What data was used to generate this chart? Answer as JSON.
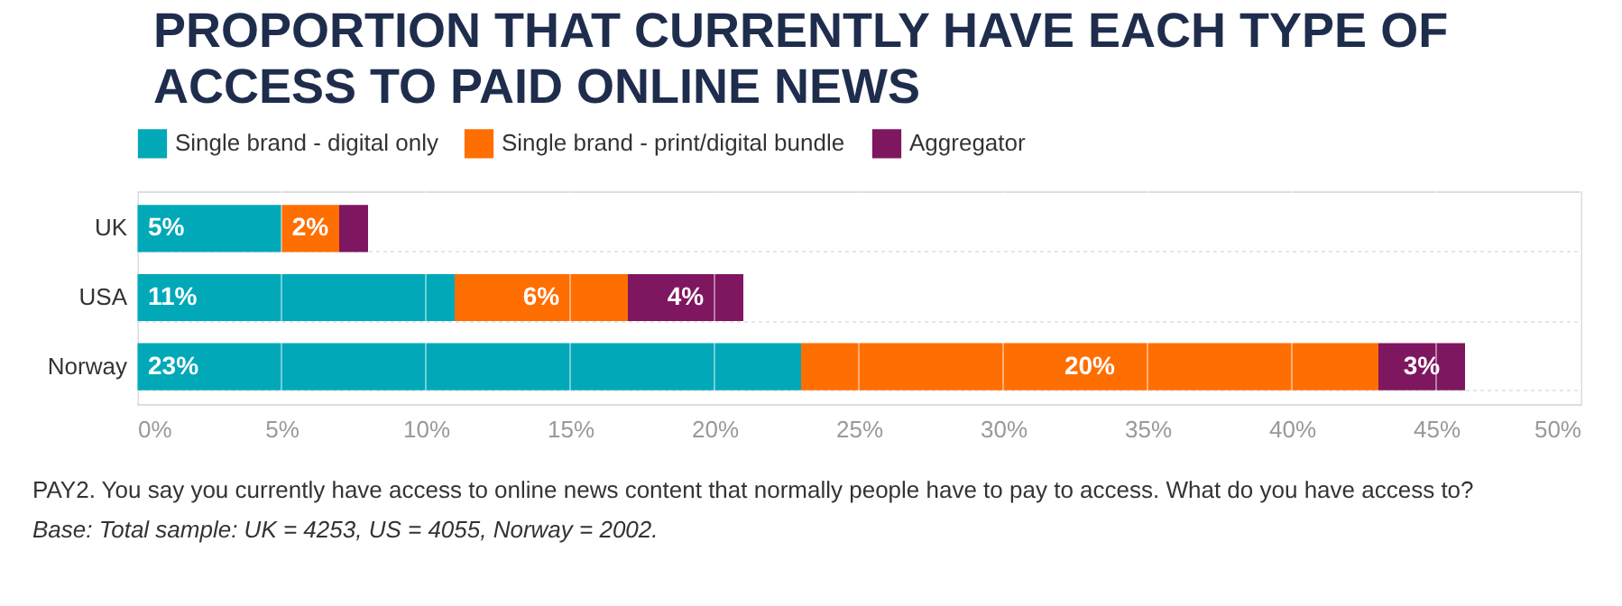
{
  "chart_data": {
    "type": "bar",
    "orientation": "horizontal",
    "stacked": true,
    "title": "PROPORTION THAT CURRENTLY HAVE EACH TYPE OF ACCESS TO PAID ONLINE NEWS",
    "categories": [
      "UK",
      "USA",
      "Norway"
    ],
    "series": [
      {
        "name": "Single brand - digital only",
        "color": "#00a8b8",
        "values": [
          5,
          11,
          23
        ],
        "value_labels": [
          "5%",
          "11%",
          "23%"
        ]
      },
      {
        "name": "Single brand - print/digital bundle",
        "color": "#ff6e00",
        "values": [
          2,
          6,
          20
        ],
        "value_labels": [
          "2%",
          "6%",
          "20%"
        ]
      },
      {
        "name": "Aggregator",
        "color": "#7f1660",
        "values": [
          1,
          4,
          3
        ],
        "value_labels": [
          null,
          "4%",
          "3%"
        ]
      }
    ],
    "xlim": [
      0,
      50
    ],
    "xticks": [
      {
        "value": 0,
        "label": "0%"
      },
      {
        "value": 5,
        "label": "5%"
      },
      {
        "value": 10,
        "label": "10%"
      },
      {
        "value": 15,
        "label": "15%"
      },
      {
        "value": 20,
        "label": "20%"
      },
      {
        "value": 25,
        "label": "25%"
      },
      {
        "value": 30,
        "label": "30%"
      },
      {
        "value": 35,
        "label": "35%"
      },
      {
        "value": 40,
        "label": "40%"
      },
      {
        "value": 45,
        "label": "45%"
      },
      {
        "value": 50,
        "label": "50%"
      }
    ],
    "grid": "x",
    "legend": "top left",
    "annotations": [
      "PAY2. You say you currently have access to online news content that normally people have to pay to access. What do you have access to?",
      "Base: Total sample: UK = 4253, US = 4055, Norway = 2002."
    ]
  }
}
